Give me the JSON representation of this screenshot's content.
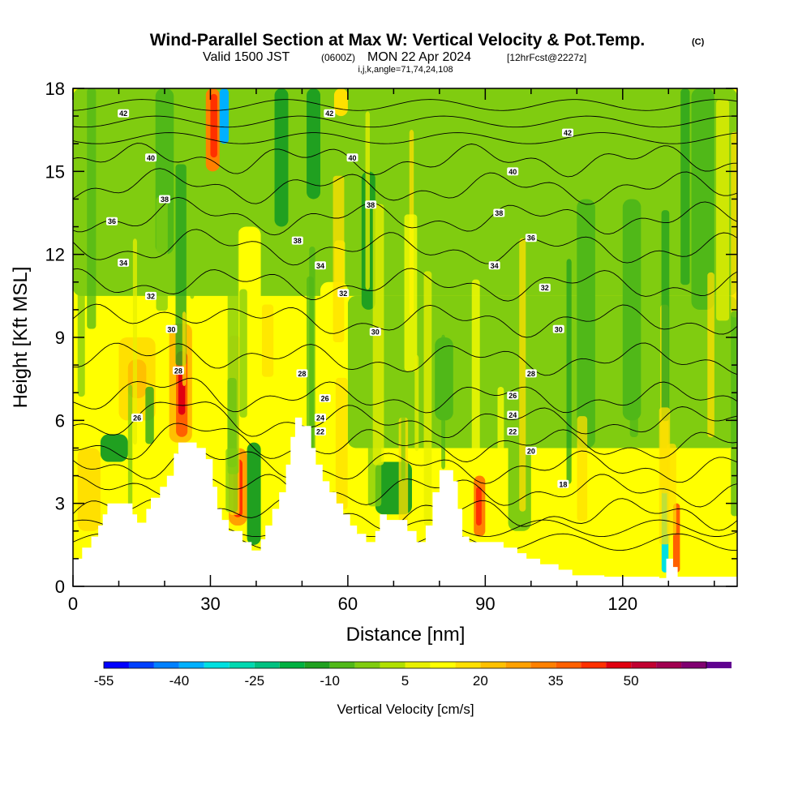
{
  "chart_data": {
    "type": "heatmap",
    "title": "Wind-Parallel Section at Max W: Vertical Velocity & Pot.Temp.",
    "title_mark": "(C)",
    "subtitle_main": "Valid 1500 JST",
    "subtitle_z": "(0600Z)",
    "subtitle_date": "MON 22 Apr 2024",
    "subtitle_fcst": "[12hrFcst@2227z]",
    "subtitle_ijk": "i,j,k,angle=71,74,24,108",
    "xlabel": "Distance [nm]",
    "ylabel": "Height [Kft MSL]",
    "xlim": [
      0,
      145
    ],
    "ylim": [
      0,
      18
    ],
    "xticks": [
      0,
      30,
      60,
      90,
      120
    ],
    "yticks": [
      0,
      3,
      6,
      9,
      12,
      15,
      18
    ],
    "colorbar": {
      "title": "Vertical Velocity [cm/s]",
      "labels": [
        "-55",
        "-40",
        "-25",
        "-10",
        "5",
        "20",
        "35",
        "50"
      ],
      "min": -55,
      "max": 60,
      "step": 5,
      "colors": [
        "#0000ff",
        "#0040ff",
        "#0080ff",
        "#00b0ff",
        "#00e0e0",
        "#00d8b0",
        "#00c080",
        "#00b040",
        "#20a020",
        "#50b818",
        "#80cc10",
        "#b0e000",
        "#e8f000",
        "#ffff00",
        "#ffe000",
        "#ffc000",
        "#ffa000",
        "#ff8000",
        "#ff6000",
        "#ff3000",
        "#e00010",
        "#c00030",
        "#a00050",
        "#800070",
        "#600090"
      ]
    },
    "theta_contours": [
      {
        "label": "18",
        "base": 2.62,
        "lx": 107,
        "ly": 3.7
      },
      {
        "label": "20",
        "base": 3.46,
        "lx": 100,
        "ly": 4.9
      },
      {
        "label": "22",
        "base": 4.3,
        "lx": 96,
        "ly": 5.6
      },
      {
        "label": "24",
        "base": 5.1,
        "lx": 96,
        "ly": 6.2
      },
      {
        "label": "26",
        "base": 5.95,
        "lx": 96,
        "ly": 6.9
      },
      {
        "label": "28",
        "base": 6.8,
        "lx": 100,
        "ly": 7.7
      },
      {
        "label": "30",
        "base": 8.2,
        "lx": 106,
        "ly": 9.3
      },
      {
        "label": "32",
        "base": 9.6,
        "lx": 103,
        "ly": 10.8
      },
      {
        "label": "34",
        "base": 10.9,
        "lx": 92,
        "ly": 11.6
      },
      {
        "label": "36",
        "base": 12.2,
        "lx": 100,
        "ly": 12.6
      },
      {
        "label": "38",
        "base": 13.3,
        "lx": 93,
        "ly": 13.5
      },
      {
        "label": "40",
        "base": 14.4,
        "lx": 96,
        "ly": 15.0
      },
      {
        "label": "42",
        "base": 15.4,
        "lx": 108,
        "ly": 16.4
      }
    ],
    "extra_iso_labels": [
      {
        "label": "42",
        "x": 11,
        "y": 17.1
      },
      {
        "label": "40",
        "x": 17,
        "y": 15.5
      },
      {
        "label": "38",
        "x": 20,
        "y": 14.0
      },
      {
        "label": "36",
        "x": 8.5,
        "y": 13.2
      },
      {
        "label": "34",
        "x": 11,
        "y": 11.7
      },
      {
        "label": "32",
        "x": 17,
        "y": 10.5
      },
      {
        "label": "30",
        "x": 21.5,
        "y": 9.3
      },
      {
        "label": "28",
        "x": 23,
        "y": 7.8
      },
      {
        "label": "26",
        "x": 14,
        "y": 6.1
      },
      {
        "label": "42",
        "x": 56,
        "y": 17.1
      },
      {
        "label": "40",
        "x": 61,
        "y": 15.5
      },
      {
        "label": "38",
        "x": 65,
        "y": 13.8
      },
      {
        "label": "38",
        "x": 49,
        "y": 12.5
      },
      {
        "label": "34",
        "x": 54,
        "y": 11.6
      },
      {
        "label": "32",
        "x": 59,
        "y": 10.6
      },
      {
        "label": "30",
        "x": 66,
        "y": 9.2
      },
      {
        "label": "28",
        "x": 50,
        "y": 7.7
      },
      {
        "label": "26",
        "x": 55,
        "y": 6.8
      },
      {
        "label": "24",
        "x": 54,
        "y": 6.1
      },
      {
        "label": "22",
        "x": 54,
        "y": 5.6
      }
    ],
    "terrain": [
      [
        0,
        1.0
      ],
      [
        2,
        1.0
      ],
      [
        2,
        1.4
      ],
      [
        4,
        1.4
      ],
      [
        4,
        1.8
      ],
      [
        5.5,
        1.8
      ],
      [
        5.5,
        2.2
      ],
      [
        6.5,
        2.2
      ],
      [
        6.5,
        2.6
      ],
      [
        7.5,
        2.6
      ],
      [
        7.5,
        3.0
      ],
      [
        13,
        3.0
      ],
      [
        13,
        2.6
      ],
      [
        14,
        2.6
      ],
      [
        14,
        2.3
      ],
      [
        16,
        2.3
      ],
      [
        16,
        2.8
      ],
      [
        17,
        2.8
      ],
      [
        17,
        3.2
      ],
      [
        19,
        3.2
      ],
      [
        19,
        3.6
      ],
      [
        20.5,
        3.6
      ],
      [
        20.5,
        4.0
      ],
      [
        22,
        4.0
      ],
      [
        22,
        4.8
      ],
      [
        23,
        4.8
      ],
      [
        23,
        5.2
      ],
      [
        27,
        5.2
      ],
      [
        27,
        5.0
      ],
      [
        29,
        5.0
      ],
      [
        29,
        4.6
      ],
      [
        30.5,
        4.6
      ],
      [
        30.5,
        3.6
      ],
      [
        31.5,
        3.6
      ],
      [
        31.5,
        2.8
      ],
      [
        32.5,
        2.8
      ],
      [
        32.5,
        2.4
      ],
      [
        34,
        2.4
      ],
      [
        34,
        2.0
      ],
      [
        37,
        2.0
      ],
      [
        37,
        1.6
      ],
      [
        39,
        1.6
      ],
      [
        39,
        1.3
      ],
      [
        41,
        1.3
      ],
      [
        41,
        1.7
      ],
      [
        42,
        1.7
      ],
      [
        42,
        2.2
      ],
      [
        43.5,
        2.2
      ],
      [
        43.5,
        2.8
      ],
      [
        45,
        2.8
      ],
      [
        45,
        3.4
      ],
      [
        46.5,
        3.4
      ],
      [
        46.5,
        4.4
      ],
      [
        47.5,
        4.4
      ],
      [
        47.5,
        5.4
      ],
      [
        48.5,
        5.4
      ],
      [
        48.5,
        6.1
      ],
      [
        50,
        6.1
      ],
      [
        50,
        5.8
      ],
      [
        52,
        5.8
      ],
      [
        52,
        5.0
      ],
      [
        53,
        5.0
      ],
      [
        53,
        4.4
      ],
      [
        54.5,
        4.4
      ],
      [
        54.5,
        3.8
      ],
      [
        56,
        3.8
      ],
      [
        56,
        3.4
      ],
      [
        57.5,
        3.4
      ],
      [
        57.5,
        3.0
      ],
      [
        59,
        3.0
      ],
      [
        59,
        2.6
      ],
      [
        60.5,
        2.6
      ],
      [
        60.5,
        2.2
      ],
      [
        62,
        2.2
      ],
      [
        62,
        1.9
      ],
      [
        64,
        1.9
      ],
      [
        64,
        1.6
      ],
      [
        66,
        1.6
      ],
      [
        66,
        2.0
      ],
      [
        67,
        2.0
      ],
      [
        67,
        2.6
      ],
      [
        68.5,
        2.6
      ],
      [
        68.5,
        2.4
      ],
      [
        73,
        2.4
      ],
      [
        73,
        2.0
      ],
      [
        75,
        2.0
      ],
      [
        75,
        1.6
      ],
      [
        77,
        1.6
      ],
      [
        77,
        2.2
      ],
      [
        78.5,
        2.2
      ],
      [
        78.5,
        3.4
      ],
      [
        80,
        3.4
      ],
      [
        80,
        4.2
      ],
      [
        83,
        4.2
      ],
      [
        83,
        3.8
      ],
      [
        84,
        3.8
      ],
      [
        84,
        2.8
      ],
      [
        85,
        2.8
      ],
      [
        85,
        1.8
      ],
      [
        86.5,
        1.8
      ],
      [
        86.5,
        1.6
      ],
      [
        94,
        1.6
      ],
      [
        94,
        1.4
      ],
      [
        97,
        1.4
      ],
      [
        97,
        1.2
      ],
      [
        99,
        1.2
      ],
      [
        99,
        1.0
      ],
      [
        102,
        1.0
      ],
      [
        102,
        0.8
      ],
      [
        106,
        0.8
      ],
      [
        106,
        0.6
      ],
      [
        109,
        0.6
      ],
      [
        109,
        0.4
      ],
      [
        116,
        0.4
      ],
      [
        116,
        0.35
      ],
      [
        128,
        0.35
      ],
      [
        128,
        0.3
      ],
      [
        129.5,
        0.3
      ],
      [
        129.5,
        1.0
      ],
      [
        131,
        1.0
      ],
      [
        131,
        0.7
      ],
      [
        132,
        0.7
      ],
      [
        132,
        0.35
      ],
      [
        145,
        0.35
      ]
    ],
    "w_field": {
      "background": "#ffff00",
      "patches": [
        {
          "x": 0,
          "w": 145,
          "y0": 10.5,
          "y1": 18,
          "v": -5
        },
        {
          "x": 60,
          "w": 85,
          "y0": 5,
          "y1": 10.5,
          "v": -5
        },
        {
          "x": 10,
          "w": 8,
          "y0": 6,
          "y1": 9,
          "v": 15
        },
        {
          "x": 12,
          "w": 4,
          "y0": 6.8,
          "y1": 8.2,
          "v": 20
        },
        {
          "x": 21,
          "w": 5,
          "y0": 5.2,
          "y1": 9.5,
          "v": 20
        },
        {
          "x": 22.5,
          "w": 2.5,
          "y0": 5.4,
          "y1": 8.5,
          "v": 35
        },
        {
          "x": 23,
          "w": 1.5,
          "y0": 6.2,
          "y1": 7.8,
          "v": 45
        },
        {
          "x": 29,
          "w": 3,
          "y0": 15,
          "y1": 18,
          "v": 30
        },
        {
          "x": 30,
          "w": 1.5,
          "y0": 15.5,
          "y1": 17.8,
          "v": 40
        },
        {
          "x": 32,
          "w": 2,
          "y0": 16,
          "y1": 18,
          "v": -40
        },
        {
          "x": 34,
          "w": 4,
          "y0": 2.2,
          "y1": 5.0,
          "v": 25
        },
        {
          "x": 35,
          "w": 2,
          "y0": 2.5,
          "y1": 4.6,
          "v": 40
        },
        {
          "x": 38,
          "w": 3,
          "y0": 1.5,
          "y1": 5.2,
          "v": -15
        },
        {
          "x": 6,
          "w": 6,
          "y0": 4.5,
          "y1": 5.5,
          "v": -15
        },
        {
          "x": 18,
          "w": 4,
          "y0": 12,
          "y1": 18,
          "v": -10
        },
        {
          "x": 44,
          "w": 3,
          "y0": 13,
          "y1": 18,
          "v": -15
        },
        {
          "x": 51,
          "w": 3,
          "y0": 14,
          "y1": 18,
          "v": -15
        },
        {
          "x": 57,
          "w": 3,
          "y0": 17,
          "y1": 18,
          "v": 15
        },
        {
          "x": 36,
          "w": 5,
          "y0": 8,
          "y1": 13,
          "v": 10
        },
        {
          "x": 54,
          "w": 6,
          "y0": 7,
          "y1": 11,
          "v": 10
        },
        {
          "x": 63,
          "w": 3,
          "y0": 10,
          "y1": 15,
          "v": -15
        },
        {
          "x": 87.5,
          "w": 2.5,
          "y0": 1.8,
          "y1": 4.0,
          "v": 30
        },
        {
          "x": 88,
          "w": 1.2,
          "y0": 2.2,
          "y1": 3.6,
          "v": 40
        },
        {
          "x": 128.5,
          "w": 1.5,
          "y0": 0.5,
          "y1": 3.6,
          "v": -35
        },
        {
          "x": 131,
          "w": 1.5,
          "y0": 0.5,
          "y1": 3.0,
          "v": 35
        },
        {
          "x": 110,
          "w": 4,
          "y0": 5,
          "y1": 14,
          "v": -10
        },
        {
          "x": 120,
          "w": 4,
          "y0": 6,
          "y1": 14,
          "v": -10
        },
        {
          "x": 135,
          "w": 5,
          "y0": 10,
          "y1": 18,
          "v": -10
        },
        {
          "x": 66,
          "w": 8,
          "y0": 2.6,
          "y1": 4.5,
          "v": -15
        },
        {
          "x": 79,
          "w": 4,
          "y0": 6,
          "y1": 9,
          "v": -10
        },
        {
          "x": 95,
          "w": 5,
          "y0": 2,
          "y1": 6,
          "v": -5
        },
        {
          "x": 1,
          "w": 5,
          "y0": 2,
          "y1": 5,
          "v": 15
        },
        {
          "x": 140,
          "w": 5,
          "y0": 2,
          "y1": 5,
          "v": 10
        }
      ]
    }
  }
}
